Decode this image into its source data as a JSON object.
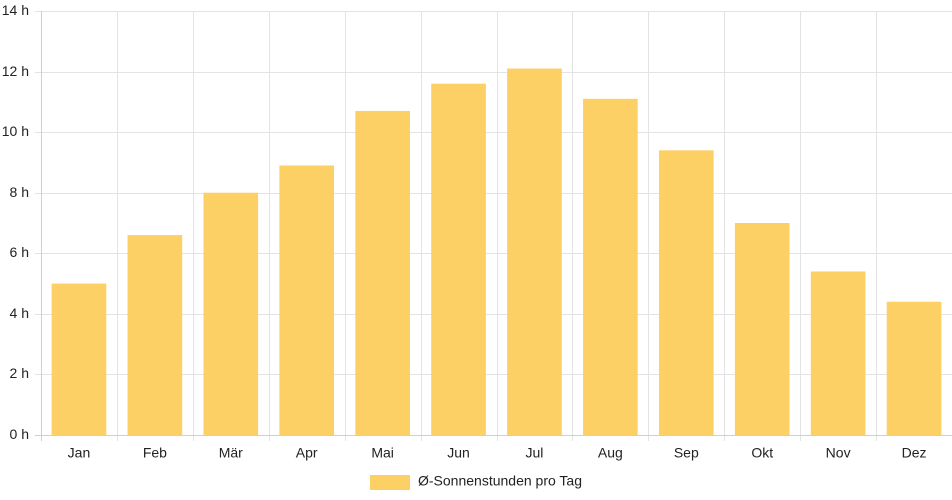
{
  "chart_data": {
    "type": "bar",
    "categories": [
      "Jan",
      "Feb",
      "Mär",
      "Apr",
      "Mai",
      "Jun",
      "Jul",
      "Aug",
      "Sep",
      "Okt",
      "Nov",
      "Dez"
    ],
    "series": [
      {
        "name": "Ø-Sonnenstunden pro Tag",
        "values": [
          5.0,
          6.6,
          8.0,
          8.9,
          10.7,
          11.6,
          12.1,
          11.1,
          9.4,
          7.0,
          5.4,
          4.4
        ],
        "color": "#fdd066"
      }
    ],
    "title": "",
    "xlabel": "",
    "ylabel": "",
    "ylim": [
      0,
      14
    ],
    "yticks": [
      0,
      2,
      4,
      6,
      8,
      10,
      12,
      14
    ],
    "ytick_labels": [
      "0 h",
      "2 h",
      "4 h",
      "6 h",
      "8 h",
      "10 h",
      "12 h",
      "14 h"
    ],
    "grid": true,
    "legend_position": "bottom-center"
  }
}
